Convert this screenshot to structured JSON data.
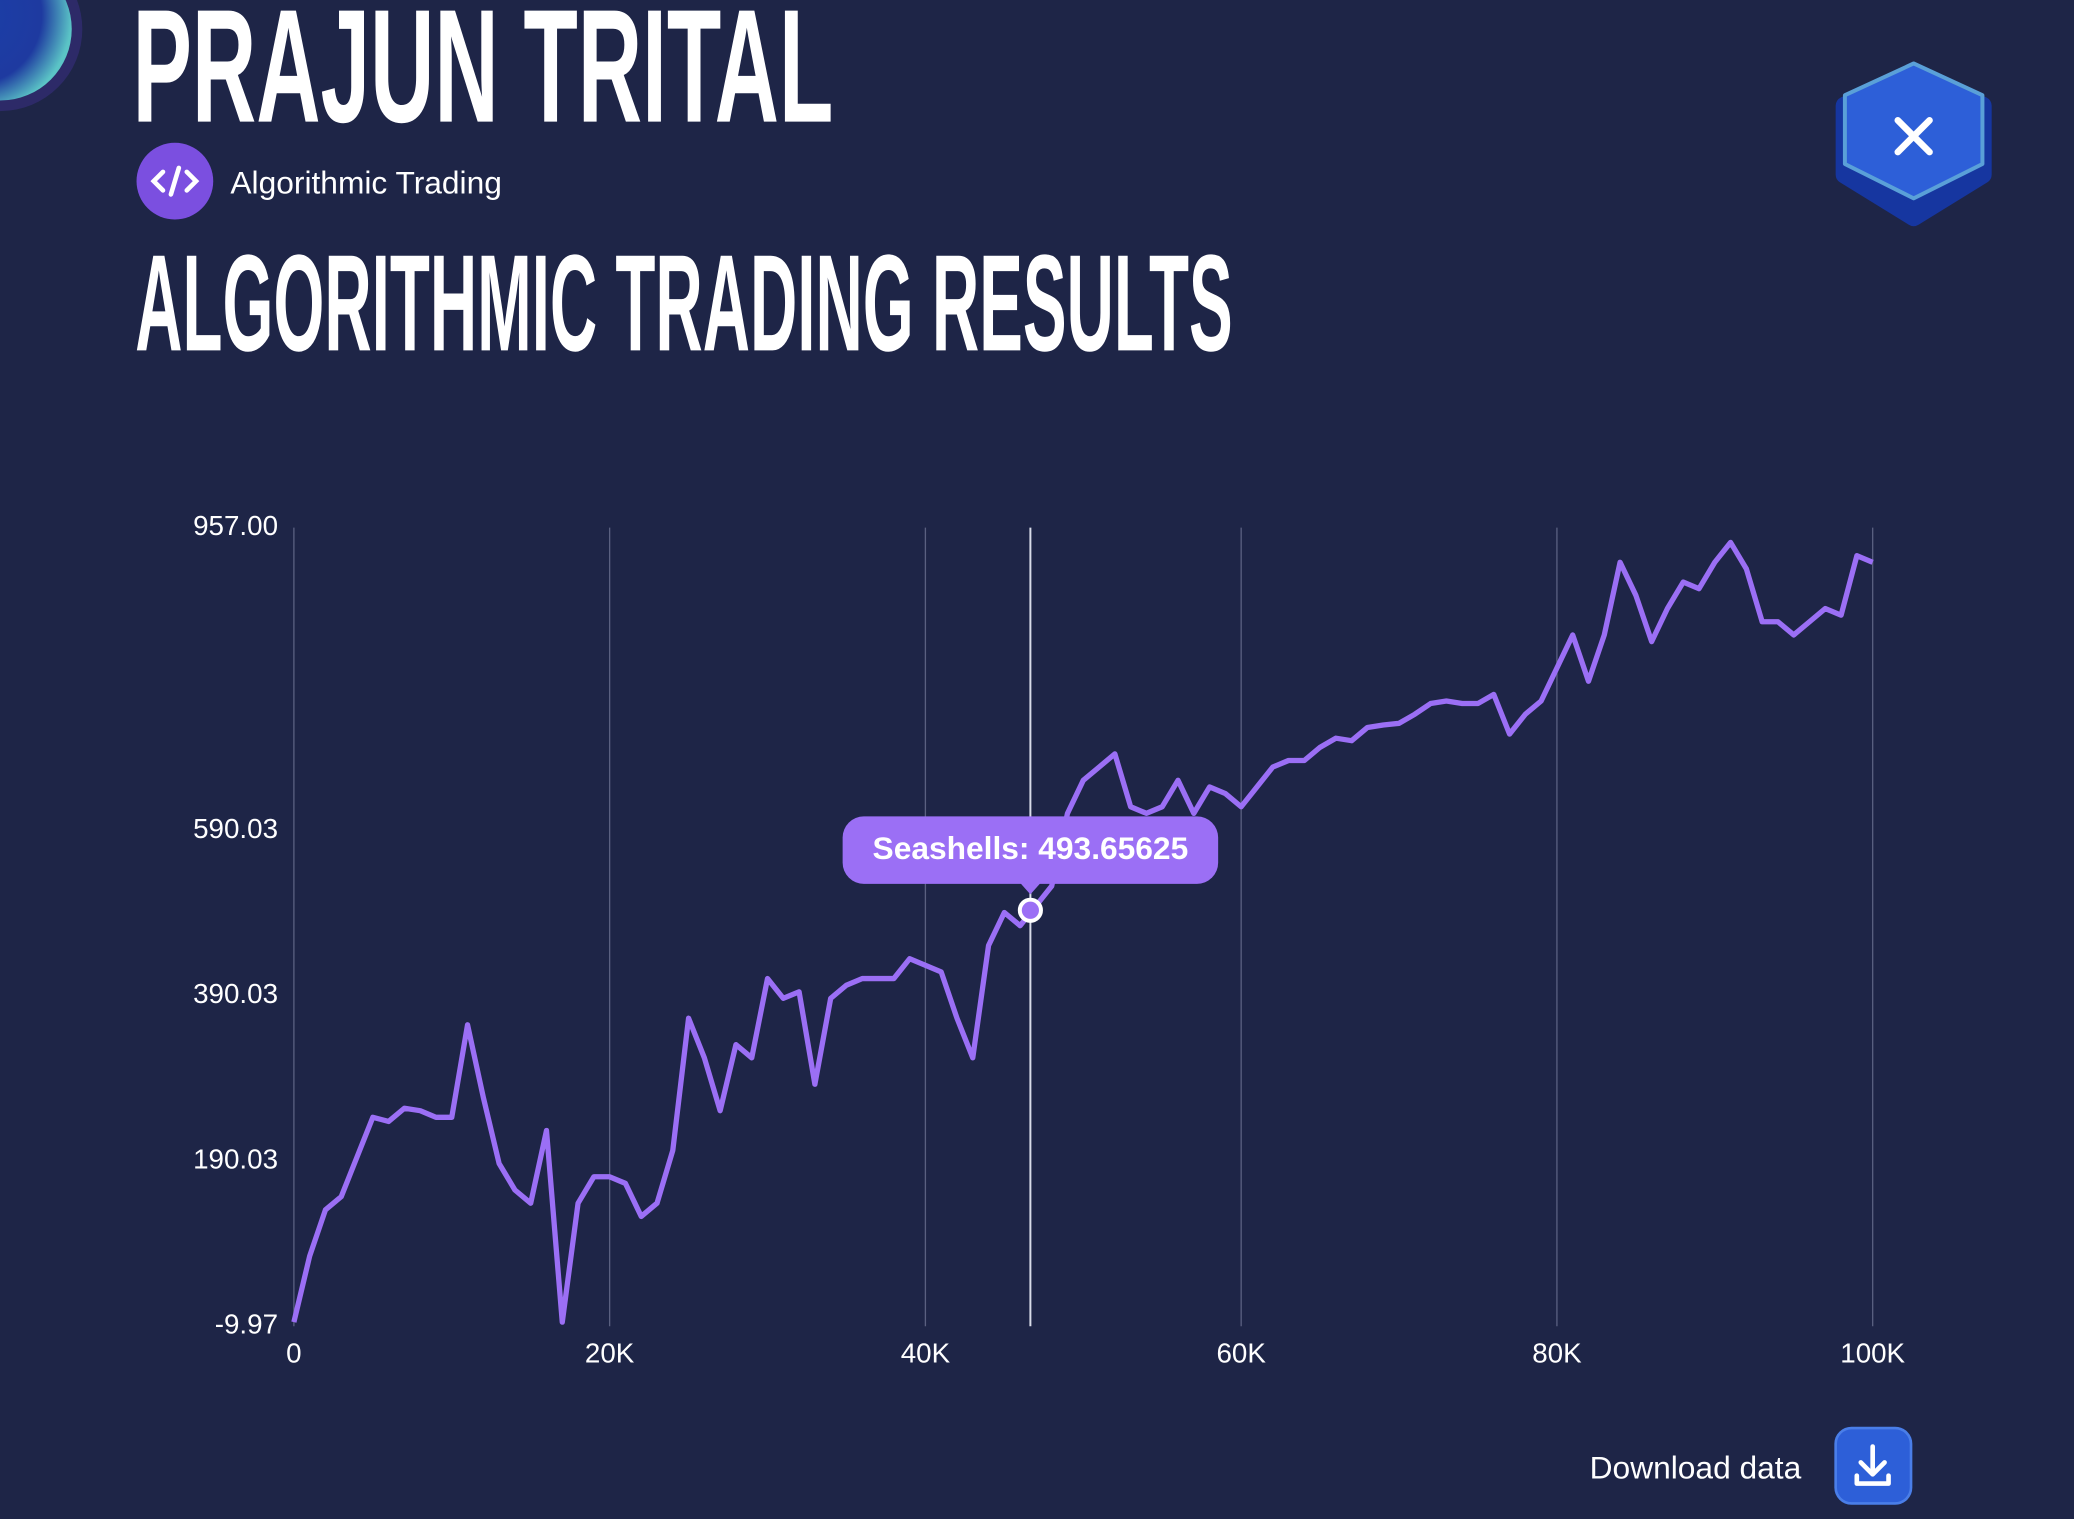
{
  "header": {
    "name": "PRAJUN TRITAL",
    "tag": "Algorithmic Trading"
  },
  "chart_data": {
    "type": "line",
    "title": "ALGORITHMIC TRADING RESULTS",
    "color": "#9b6ff5",
    "grid": "x",
    "x": [
      0,
      1000,
      2000,
      3000,
      4000,
      5000,
      6000,
      7000,
      8000,
      9000,
      10000,
      11000,
      12000,
      13000,
      14000,
      15000,
      16000,
      17000,
      18000,
      19000,
      20000,
      21000,
      22000,
      23000,
      24000,
      25000,
      26000,
      27000,
      28000,
      29000,
      30000,
      31000,
      32000,
      33000,
      34000,
      35000,
      36000,
      37000,
      38000,
      39000,
      40000,
      41000,
      42000,
      43000,
      44000,
      45000,
      46000,
      47000,
      48000,
      49000,
      50000,
      51000,
      52000,
      53000,
      54000,
      55000,
      56000,
      57000,
      58000,
      59000,
      60000,
      61000,
      62000,
      63000,
      64000,
      65000,
      66000,
      67000,
      68000,
      69000,
      70000,
      71000,
      72000,
      73000,
      74000,
      75000,
      76000,
      77000,
      78000,
      79000,
      80000,
      81000,
      82000,
      83000,
      84000,
      85000,
      86000,
      87000,
      88000,
      89000,
      90000,
      91000,
      92000,
      93000,
      94000,
      95000,
      96000,
      97000,
      98000,
      99000,
      100000
    ],
    "values": [
      -5,
      75,
      131,
      147,
      195,
      243,
      238,
      254,
      251,
      243,
      243,
      355,
      267,
      187,
      155,
      139,
      227,
      -5,
      139,
      171,
      171,
      163,
      123,
      139,
      203,
      363,
      315,
      251,
      331,
      315,
      411,
      387,
      395,
      283,
      387,
      403,
      411,
      411,
      411,
      435,
      427,
      419,
      363,
      315,
      451,
      491,
      475,
      499,
      523,
      611,
      651,
      667,
      683,
      619,
      611,
      619,
      651,
      611,
      643,
      635,
      619,
      643,
      667,
      675,
      675,
      691,
      702,
      699,
      715,
      718,
      720,
      731,
      744,
      747,
      744,
      744,
      755,
      707,
      731,
      747,
      787,
      827,
      771,
      827,
      915,
      875,
      819,
      859,
      891,
      883,
      915,
      939,
      907,
      843,
      843,
      827,
      843,
      859,
      851,
      923,
      915
    ],
    "xlim": [
      0,
      100000
    ],
    "ylim": [
      -9.97,
      957
    ],
    "xticks": [
      0,
      {
        "value": 20000,
        "label": "20K"
      },
      {
        "value": 40000,
        "label": "40K"
      },
      {
        "value": 60000,
        "label": "60K"
      },
      {
        "value": 80000,
        "label": "80K"
      },
      {
        "value": 100000,
        "label": "100K"
      }
    ],
    "yticks": [
      -9.97,
      190.03,
      390.03,
      590.03,
      {
        "value": 957,
        "label": "957.00"
      }
    ],
    "tooltip": {
      "label": "Seashells: 493.65625",
      "x": 46650,
      "value": 493.65625
    }
  },
  "footer": {
    "download": "Download data"
  }
}
